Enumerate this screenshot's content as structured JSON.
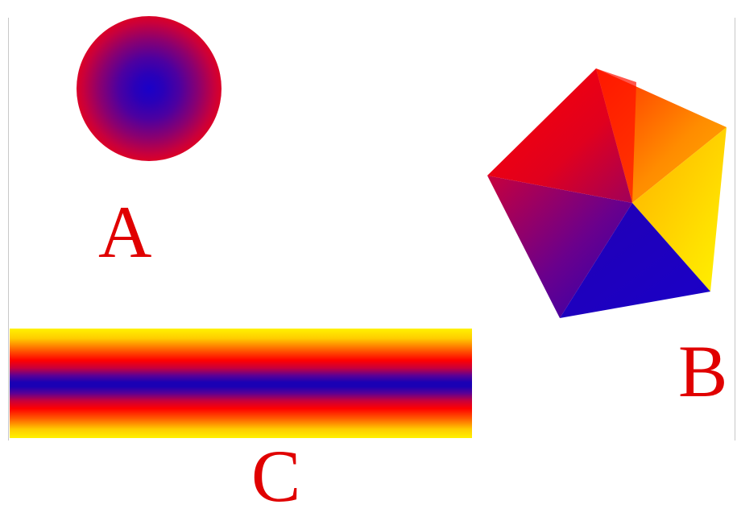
{
  "labels": {
    "a": "A",
    "b": "B",
    "c": "C"
  },
  "colors": {
    "label": "#e00000",
    "red": "#ff0000",
    "blue": "#1a00c8",
    "yellow": "#fff200",
    "orange": "#ff8c00"
  },
  "shapes": {
    "a": "radial-gradient-circle",
    "b": "angular-gradient-pentagon",
    "c": "linear-gradient-bar"
  }
}
